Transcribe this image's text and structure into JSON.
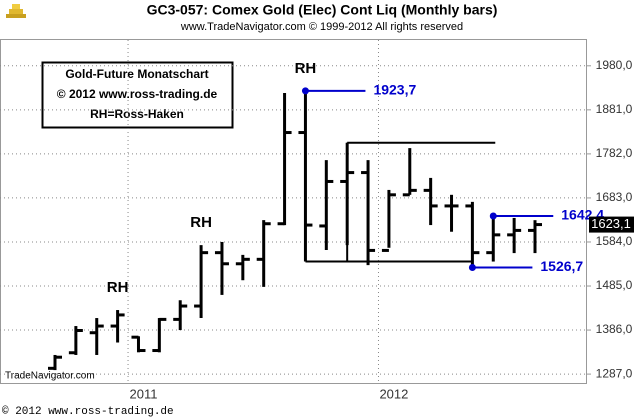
{
  "chart_data": {
    "type": "ohlc",
    "title": "GC3-057:  Comex Gold (Elec) Cont Liq  (Monthly bars)",
    "subtitle": "www.TradeNavigator.com © 1999-2012 All rights reserved",
    "info_box": [
      "Gold-Future Monatschart",
      "© 2012  www.ross-trading.de",
      "RH=Ross-Haken"
    ],
    "source": "TradeNavigator.com",
    "footer": "© 2012  www.ross-trading.de",
    "categories": [
      null,
      null,
      null,
      null,
      "2011",
      null,
      null,
      null,
      null,
      null,
      null,
      null,
      null,
      null,
      null,
      null,
      "2012",
      null,
      null,
      null,
      null,
      null,
      null,
      null
    ],
    "color": "#000000",
    "open": [
      1300,
      1335,
      1380,
      1395,
      1370,
      1340,
      1410,
      1440,
      1560,
      1535,
      1545,
      1625,
      1830,
      1620,
      1720,
      1740,
      1565,
      1690,
      1700,
      1665,
      1665,
      1560,
      1600,
      1610
    ],
    "high": [
      1330,
      1395,
      1413,
      1431,
      1372,
      1413,
      1453,
      1577,
      1584,
      1555,
      1633,
      1919,
      1923.7,
      1768,
      1807,
      1768,
      1701,
      1795,
      1728,
      1690,
      1674,
      1642.4,
      1638,
      1633
    ],
    "low": [
      1296,
      1330,
      1330,
      1358,
      1336,
      1336,
      1386,
      1413,
      1465,
      1498,
      1483,
      1622,
      1540,
      1566,
      1577,
      1532,
      1571,
      1690,
      1622,
      1607,
      1526.7,
      1540,
      1559,
      1559
    ],
    "close": [
      1325,
      1385,
      1395,
      1420,
      1340,
      1410,
      1440,
      1560,
      1535,
      1545,
      1625,
      1830,
      1622,
      1720,
      1740,
      1565,
      1690,
      1700,
      1665,
      1665,
      1560,
      1600,
      1610,
      1623.1
    ],
    "last_label": "1623,1",
    "ylim": [
      1267,
      2038
    ],
    "yticks": [
      {
        "value": 1287,
        "label": "1287,0"
      },
      {
        "value": 1386,
        "label": "1386,0"
      },
      {
        "value": 1485,
        "label": "1485,0"
      },
      {
        "value": 1584,
        "label": "1584,0"
      },
      {
        "value": 1683,
        "label": "1683,0"
      },
      {
        "value": 1782,
        "label": "1782,0"
      },
      {
        "value": 1881,
        "label": "1881,0"
      },
      {
        "value": 1980,
        "label": "1980,0"
      }
    ],
    "grid": true,
    "rh_labels": [
      {
        "text": "RH",
        "index": 3
      },
      {
        "text": "RH",
        "index": 7
      },
      {
        "text": "RH",
        "index": 12
      }
    ],
    "price_labels": [
      {
        "value": 1923.7,
        "label": "1923,7",
        "index": 12
      },
      {
        "value": 1642.4,
        "label": "1642,4",
        "index": 21
      },
      {
        "value": 1526.7,
        "label": "1526,7",
        "index": 20
      }
    ],
    "label_color": "#0000cc"
  }
}
